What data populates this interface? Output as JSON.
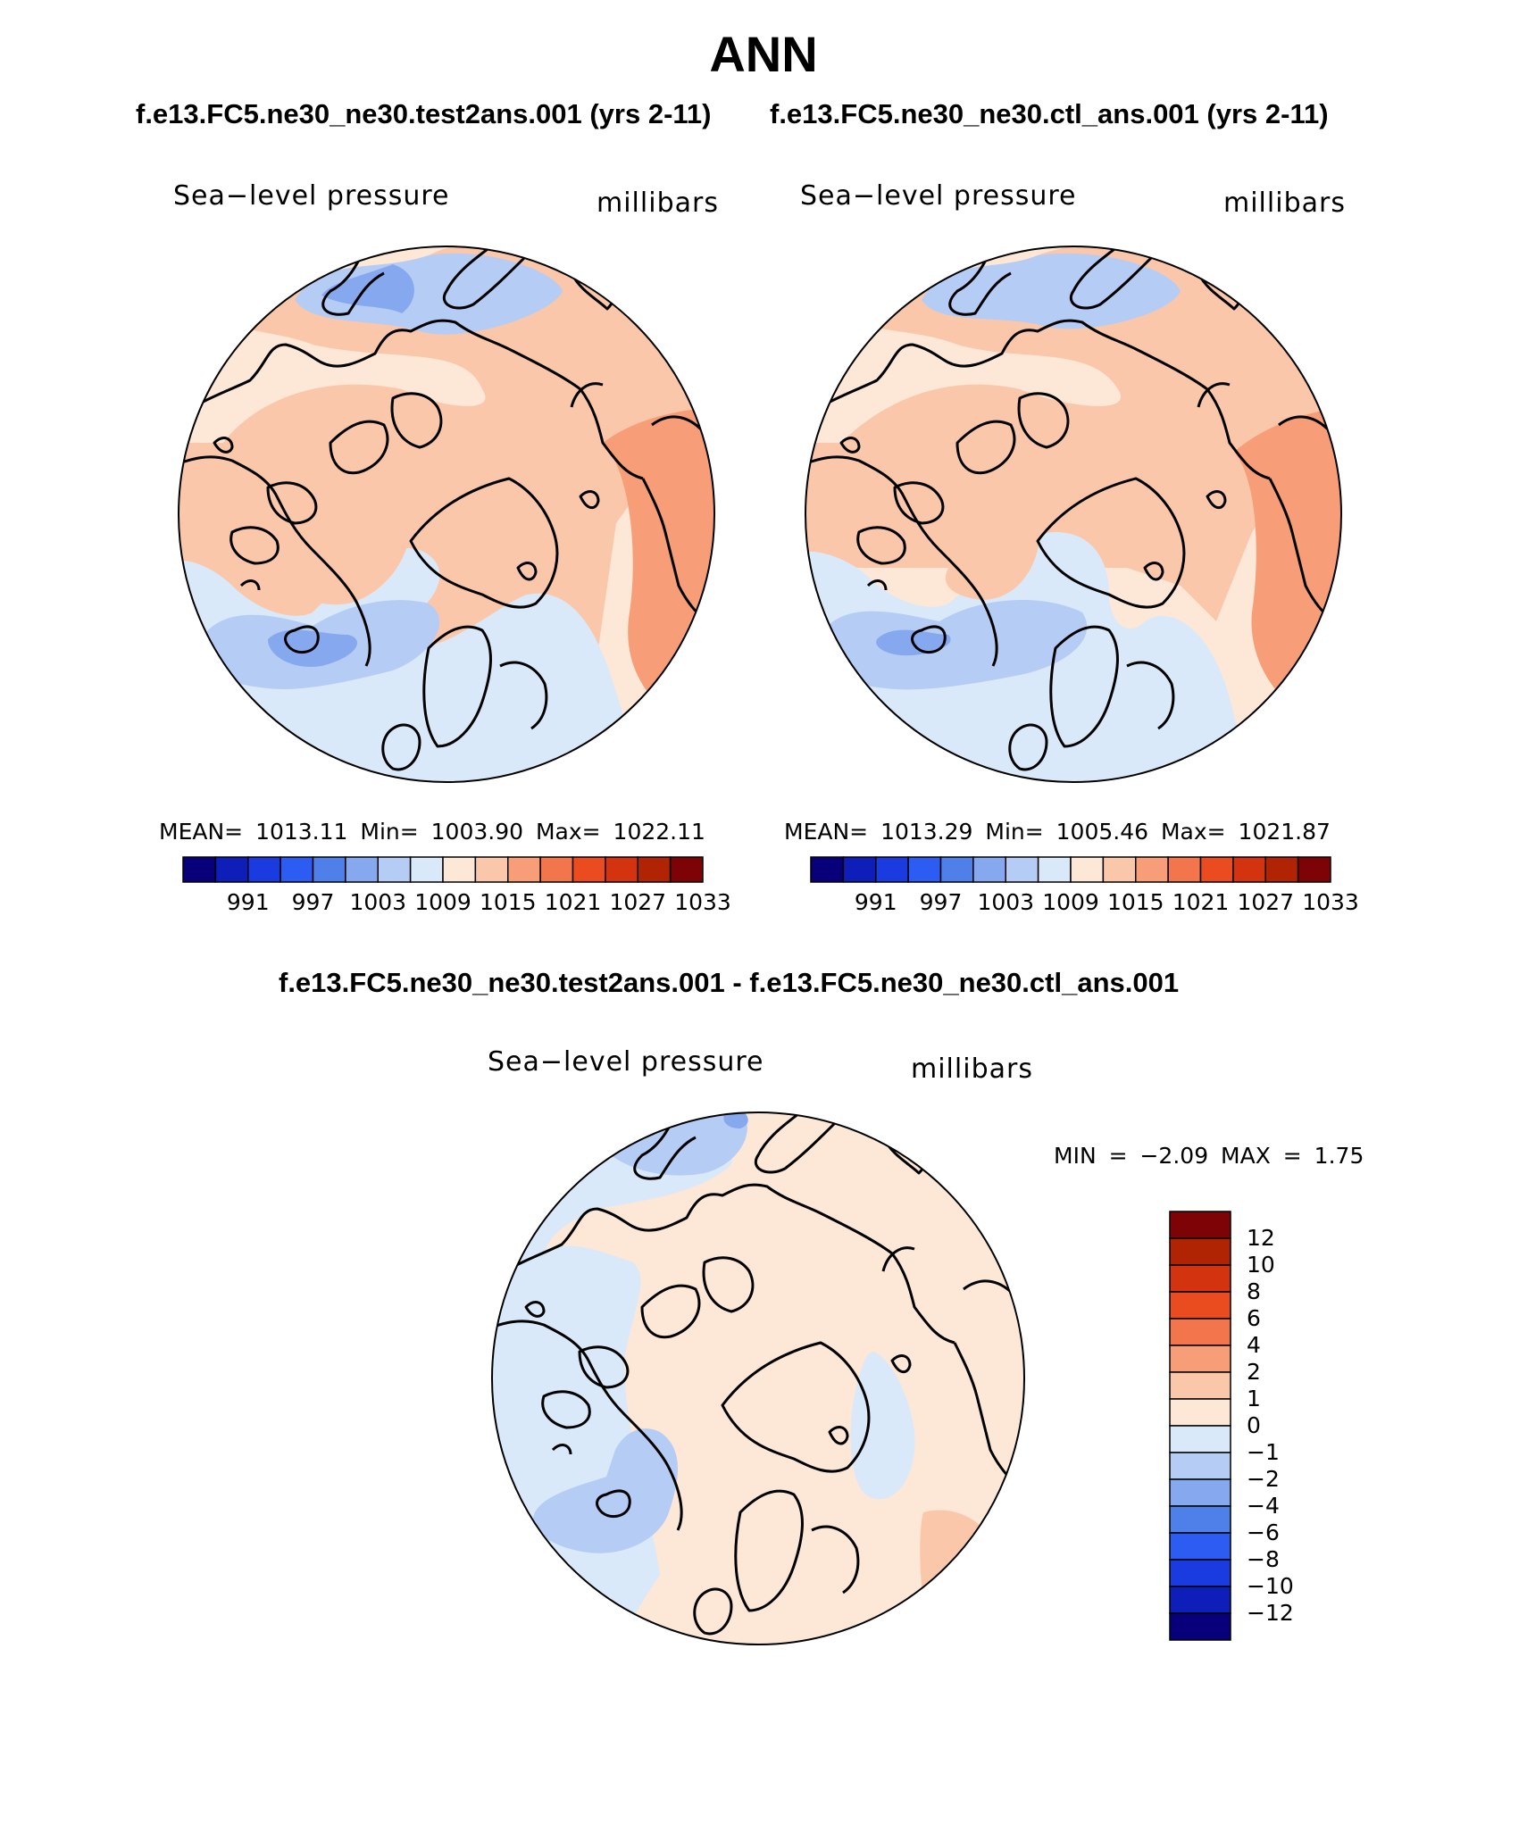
{
  "title": "ANN",
  "panels": [
    {
      "subtitle": "f.e13.FC5.ne30_ne30.test2ans.001 (yrs 2-11)",
      "variable": "Sea−level pressure",
      "units": "millibars",
      "stats": "MEAN= 1013.11   Min= 1003.90   Max= 1022.11"
    },
    {
      "subtitle": "f.e13.FC5.ne30_ne30.ctl_ans.001 (yrs 2-11)",
      "variable": "Sea−level pressure",
      "units": "millibars",
      "stats": "MEAN= 1013.29   Min= 1005.46   Max= 1021.87"
    }
  ],
  "difference": {
    "subtitle": "f.e13.FC5.ne30_ne30.test2ans.001 - f.e13.FC5.ne30_ne30.ctl_ans.001",
    "variable": "Sea−level pressure",
    "units": "millibars",
    "minmax": "MIN =  −2.09  MAX =    1.75"
  },
  "colorbar_abs": {
    "labels": [
      "991",
      "997",
      "1003",
      "1009",
      "1015",
      "1021",
      "1027",
      "1033"
    ],
    "colors": [
      "#08007a",
      "#0d1fb8",
      "#1a3be0",
      "#2c5cf2",
      "#4f7fe8",
      "#86a8ef",
      "#b5ccf5",
      "#d9e9fa",
      "#fde7d6",
      "#fbc7aa",
      "#f79e78",
      "#f2754b",
      "#ea4b1f",
      "#d43310",
      "#b02404",
      "#7e0306"
    ]
  },
  "colorbar_diff": {
    "labels": [
      "12",
      "10",
      "8",
      "6",
      "4",
      "2",
      "1",
      "0",
      "−1",
      "−2",
      "−4",
      "−6",
      "−8",
      "−10",
      "−12"
    ],
    "colors_top_to_bottom": [
      "#7e0306",
      "#b02404",
      "#d43310",
      "#ea4b1f",
      "#f2754b",
      "#f79e78",
      "#fbc7aa",
      "#fde7d6",
      "#d9e9fa",
      "#b5ccf5",
      "#86a8ef",
      "#4f7fe8",
      "#2c5cf2",
      "#1a3be0",
      "#0d1fb8",
      "#08007a"
    ]
  },
  "colors": {
    "low_strong": "#86a8ef",
    "low_mid": "#b5ccf5",
    "low_weak": "#d9e9fa",
    "high_weak": "#fde7d6",
    "high_mid": "#fbc7aa",
    "high_strong": "#f79e78",
    "coast": "#000000"
  }
}
